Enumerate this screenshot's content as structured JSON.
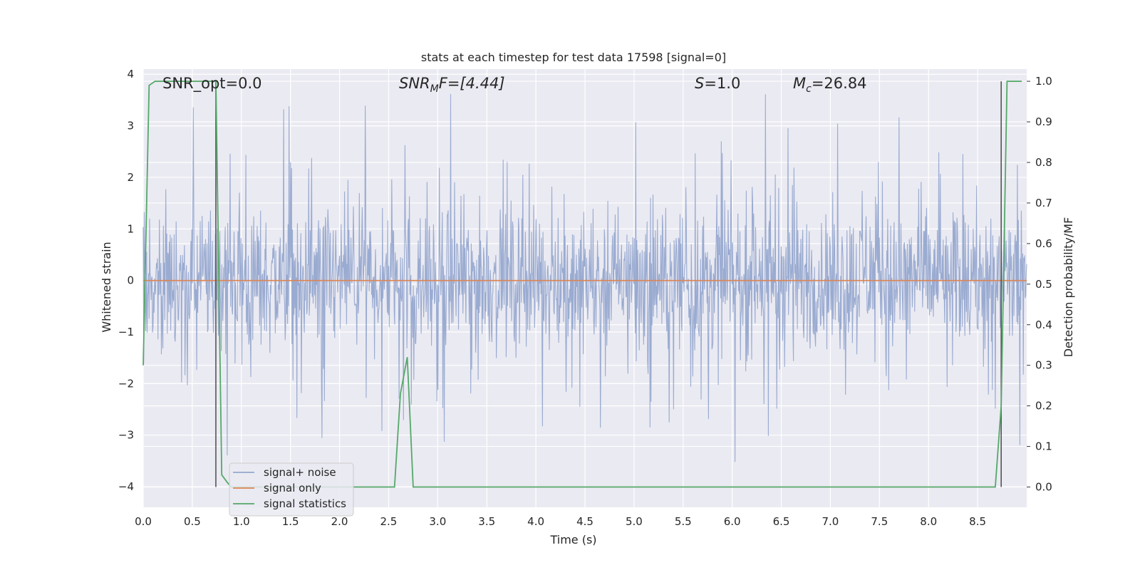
{
  "chart_data": {
    "type": "line",
    "title": "stats at each timestep for test data 17598 [signal=0]",
    "xlabel": "Time (s)",
    "ylabel_left": "Whitened strain",
    "ylabel_right": "Detection probability/MF",
    "xlim": [
      0.0,
      9.0
    ],
    "ylim_left": [
      -4.4,
      4.1
    ],
    "ylim_right": [
      -0.05,
      1.03
    ],
    "x_ticks": [
      "0.0",
      "0.5",
      "1.0",
      "1.5",
      "2.0",
      "2.5",
      "3.0",
      "3.5",
      "4.0",
      "4.5",
      "5.0",
      "5.5",
      "6.0",
      "6.5",
      "7.0",
      "7.5",
      "8.0",
      "8.5"
    ],
    "y_ticks_left": [
      "4",
      "3",
      "2",
      "1",
      "0",
      "−1",
      "−2",
      "−3",
      "−4"
    ],
    "y_ticks_right": [
      "1.0",
      "0.9",
      "0.8",
      "0.7",
      "0.6",
      "0.5",
      "0.4",
      "0.3",
      "0.2",
      "0.1",
      "0.0"
    ],
    "grid": true,
    "legend_position": "lower-left",
    "annotations": {
      "snr_opt": "SNR_opt=0.0",
      "snr_mf_prefix": "SNR",
      "snr_mf_sub": "M",
      "snr_mf_suffix": "F=[4.44]",
      "s_italic": "S",
      "s_rest": "=1.0",
      "mc_italic": "M",
      "mc_sub": "c",
      "mc_rest": "=26.84"
    },
    "series": [
      {
        "name": "signal+ noise",
        "color": "#96a8cf",
        "axis": "left",
        "description_values": "dense noise, mostly within [-1.7, 1.3], peaks up to about 3.7 and down to about -3.9",
        "noise_envelope": {
          "core_low": -1.7,
          "core_high": 1.3,
          "peak_high": 3.72,
          "peak_low": -3.92
        }
      },
      {
        "name": "signal only",
        "color": "#dd8452",
        "axis": "left",
        "x": [
          0.0,
          9.0
        ],
        "y": [
          0.0,
          0.0
        ]
      },
      {
        "name": "signal statistics",
        "color": "#55a868",
        "axis": "right",
        "x": [
          0.0,
          0.06,
          0.12,
          0.74,
          0.8,
          0.86,
          0.9,
          2.56,
          2.62,
          2.69,
          2.75,
          8.68,
          8.74,
          8.8,
          8.85,
          8.95
        ],
        "y": [
          0.3,
          0.99,
          1.0,
          1.0,
          0.03,
          0.01,
          0.0,
          0.0,
          0.23,
          0.32,
          0.0,
          0.0,
          0.2,
          1.0,
          1.0,
          1.0
        ]
      },
      {
        "name": "markers",
        "color": "#555555",
        "axis": "right",
        "x": [
          0.74,
          8.74
        ],
        "y_range": [
          0.0,
          1.0
        ]
      }
    ]
  }
}
